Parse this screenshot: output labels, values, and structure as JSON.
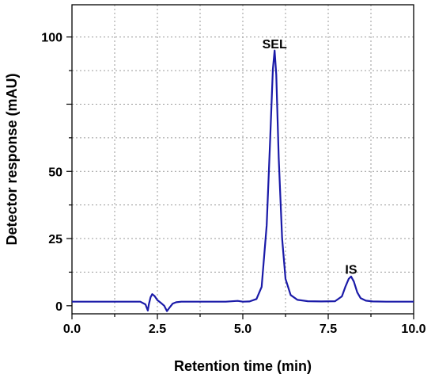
{
  "chart_data": {
    "type": "line",
    "title": "",
    "xlabel": "Retention time (min)",
    "ylabel": "Detector response (mAU)",
    "xlim": [
      0,
      10
    ],
    "ylim": [
      -3,
      112
    ],
    "x_ticks": [
      "0.0",
      "2.5",
      "5.0",
      "7.5",
      "10.0"
    ],
    "y_ticks": [
      "0",
      "25",
      "50",
      "100"
    ],
    "grid": true,
    "line_color": "#1a1aa8",
    "annotations": [
      {
        "text": "SEL",
        "x": 5.93,
        "y": 97
      },
      {
        "text": "IS",
        "x": 8.17,
        "y": 13
      }
    ],
    "series": [
      {
        "x": [
          0,
          0.5,
          1.0,
          1.5,
          2.0,
          2.15,
          2.22,
          2.25,
          2.3,
          2.35,
          2.42,
          2.5,
          2.6,
          2.7,
          2.78,
          2.85,
          2.95,
          3.05,
          3.2,
          3.5,
          4.0,
          4.5,
          4.85,
          5.0,
          5.2,
          5.4,
          5.55,
          5.7,
          5.8,
          5.88,
          5.93,
          5.98,
          6.05,
          6.15,
          6.25,
          6.4,
          6.6,
          6.9,
          7.3,
          7.7,
          7.9,
          8.0,
          8.1,
          8.17,
          8.25,
          8.35,
          8.45,
          8.6,
          8.8,
          9.2,
          9.6,
          10.0
        ],
        "y": [
          1.5,
          1.5,
          1.5,
          1.5,
          1.5,
          0.5,
          -1.8,
          0.5,
          3.2,
          4.3,
          3.6,
          2.1,
          1.1,
          0.0,
          -2.0,
          -0.8,
          0.8,
          1.3,
          1.5,
          1.5,
          1.5,
          1.5,
          1.8,
          1.5,
          1.6,
          2.5,
          7.0,
          30.0,
          62.0,
          88.0,
          95.0,
          86.0,
          55.0,
          25.0,
          10.0,
          4.0,
          2.2,
          1.7,
          1.6,
          1.7,
          3.5,
          7.0,
          10.0,
          10.9,
          9.0,
          5.0,
          2.8,
          1.9,
          1.6,
          1.5,
          1.5,
          1.5
        ]
      }
    ]
  }
}
